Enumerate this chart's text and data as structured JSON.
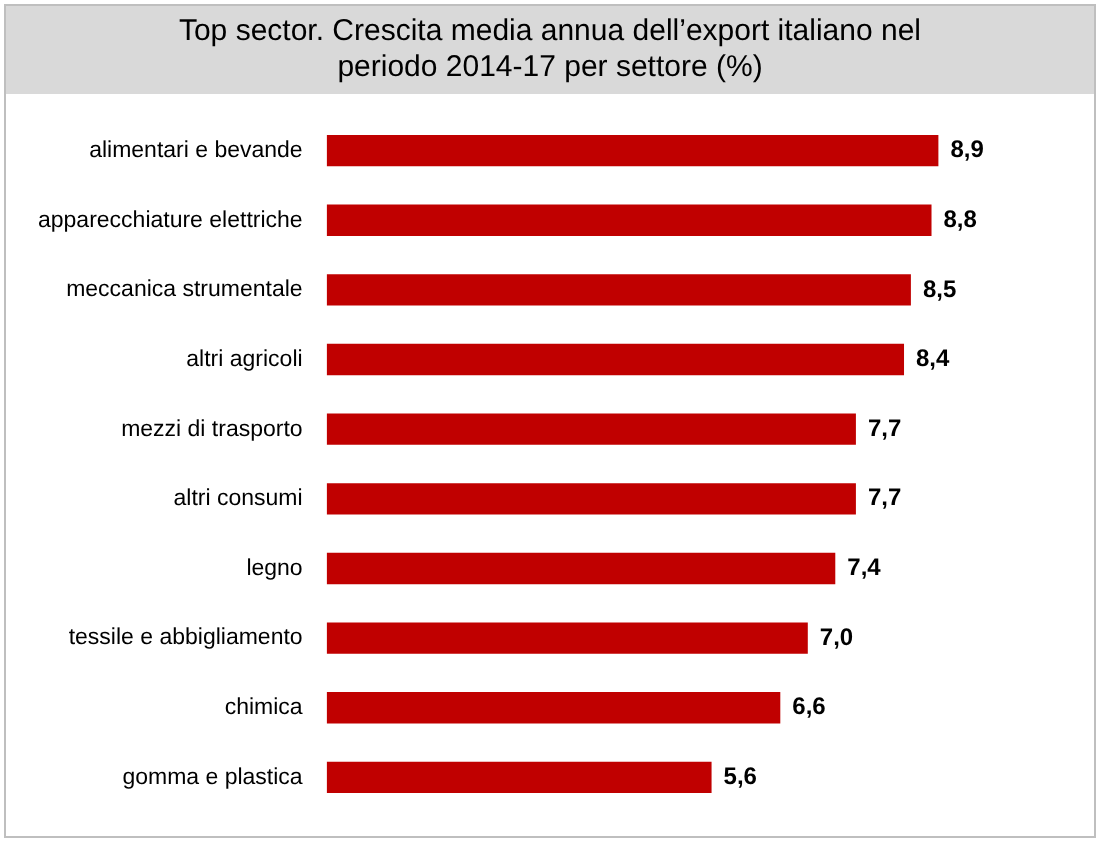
{
  "chart_data": {
    "type": "bar",
    "orientation": "horizontal",
    "title": "Top sector. Crescita media annua  dell’export italiano nel periodo 2014-17 per settore (%)",
    "categories": [
      "alimentari e bevande",
      "apparecchiature elettriche",
      "meccanica strumentale",
      "altri agricoli",
      "mezzi di trasporto",
      "altri consumi",
      "legno",
      "tessile e abbigliamento",
      "chimica",
      "gomma e plastica"
    ],
    "values": [
      8.9,
      8.8,
      8.5,
      8.4,
      7.7,
      7.7,
      7.4,
      7.0,
      6.6,
      5.6
    ],
    "value_labels": [
      "8,9",
      "8,8",
      "8,5",
      "8,4",
      "7,7",
      "7,7",
      "7,4",
      "7,0",
      "6,6",
      "5,6"
    ],
    "color": "#c00000",
    "grid": false,
    "legend": false,
    "tick_labels": "y"
  }
}
